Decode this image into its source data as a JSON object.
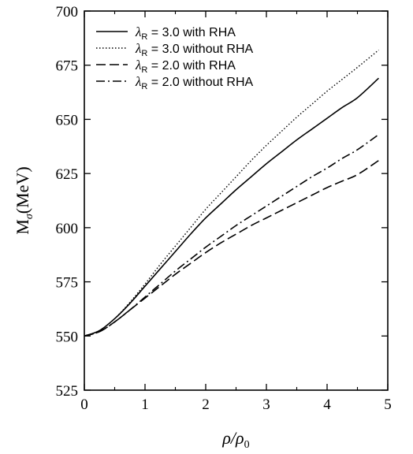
{
  "chart_data": {
    "type": "line",
    "xlabel": "ρ/ρ0",
    "ylabel": "Mσ(MeV)",
    "xlim": [
      0,
      5
    ],
    "ylim": [
      525,
      700
    ],
    "x_ticks": [
      0,
      1,
      2,
      3,
      4,
      5
    ],
    "y_ticks": [
      525,
      550,
      575,
      600,
      625,
      650,
      675,
      700
    ],
    "grid": false,
    "legend_position": "top-left",
    "series": [
      {
        "name": "λR = 3.0 with RHA",
        "legend_symbol": "λ",
        "legend_subscript": "R",
        "legend_text": " = 3.0 with RHA",
        "style": "solid",
        "x": [
          0,
          0.25,
          0.5,
          0.75,
          1.0,
          1.25,
          1.5,
          1.75,
          2.0,
          2.25,
          2.5,
          2.75,
          3.0,
          3.25,
          3.5,
          3.75,
          4.0,
          4.25,
          4.5,
          4.85
        ],
        "y": [
          550,
          552.5,
          558,
          565,
          573,
          581,
          589,
          597,
          604.5,
          611,
          617.5,
          623.5,
          629.5,
          635,
          640.5,
          645.5,
          650.5,
          655.5,
          660,
          669
        ]
      },
      {
        "name": "λR = 3.0 without RHA",
        "legend_symbol": "λ",
        "legend_subscript": "R",
        "legend_text": " = 3.0 without RHA",
        "style": "dotted",
        "x": [
          0,
          0.25,
          0.5,
          0.75,
          1.0,
          1.25,
          1.5,
          1.75,
          2.0,
          2.25,
          2.5,
          2.75,
          3.0,
          3.25,
          3.5,
          3.75,
          4.0,
          4.25,
          4.5,
          4.85
        ],
        "y": [
          550,
          552.5,
          558,
          565.5,
          574,
          583,
          591.5,
          600,
          608.5,
          616,
          623.5,
          631,
          638,
          644.5,
          651,
          657,
          663,
          668.5,
          674,
          682
        ]
      },
      {
        "name": "λR = 2.0 with RHA",
        "legend_symbol": "λ",
        "legend_subscript": "R",
        "legend_text": " = 2.0 with RHA",
        "style": "dashed",
        "x": [
          0,
          0.25,
          0.5,
          0.75,
          1.0,
          1.25,
          1.5,
          1.75,
          2.0,
          2.25,
          2.5,
          2.75,
          3.0,
          3.25,
          3.5,
          3.75,
          4.0,
          4.25,
          4.5,
          4.85
        ],
        "y": [
          550,
          552,
          556.5,
          562,
          567.5,
          573,
          578.5,
          583.5,
          588.5,
          593,
          597,
          601,
          604.5,
          608,
          611.5,
          615,
          618.5,
          621.5,
          624.5,
          631
        ]
      },
      {
        "name": "λR = 2.0 without RHA",
        "legend_symbol": "λ",
        "legend_subscript": "R",
        "legend_text": " = 2.0 without RHA",
        "style": "dashdot",
        "x": [
          0,
          0.25,
          0.5,
          0.75,
          1.0,
          1.25,
          1.5,
          1.75,
          2.0,
          2.25,
          2.5,
          2.75,
          3.0,
          3.25,
          3.5,
          3.75,
          4.0,
          4.25,
          4.5,
          4.85
        ],
        "y": [
          550,
          552,
          556.5,
          562,
          568,
          574,
          580,
          585.5,
          591,
          596,
          601,
          605.5,
          610,
          614.5,
          619,
          623.5,
          627.5,
          632,
          636,
          643
        ]
      }
    ]
  }
}
